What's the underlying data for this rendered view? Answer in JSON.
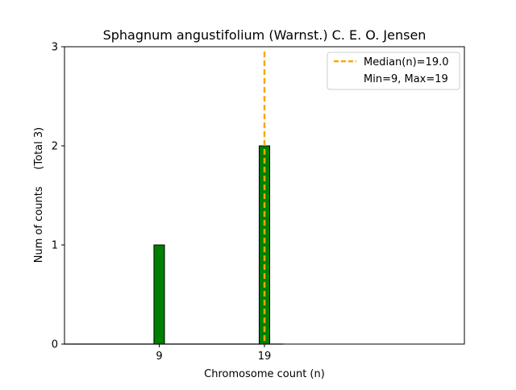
{
  "chart_data": {
    "type": "bar",
    "title": "Sphagnum angustifolium (Warnst.) C. E. O. Jensen",
    "xlabel": "Chromosome count (n)",
    "ylabel": "Num of counts     (Total 3)",
    "xlim": [
      0,
      38
    ],
    "ylim": [
      0,
      3
    ],
    "x_ticks": [
      9,
      19
    ],
    "y_ticks": [
      0,
      1,
      2,
      3
    ],
    "bar_width": 1,
    "series": [
      {
        "x": [
          9,
          19
        ],
        "values": [
          1,
          2
        ],
        "color": "#008000"
      }
    ],
    "median": {
      "value": 19.0,
      "color": "#FFA500"
    },
    "legend": {
      "position": "top-right",
      "entries": [
        "Median(n)=19.0",
        "Min=9, Max=19"
      ]
    },
    "grid": false
  }
}
